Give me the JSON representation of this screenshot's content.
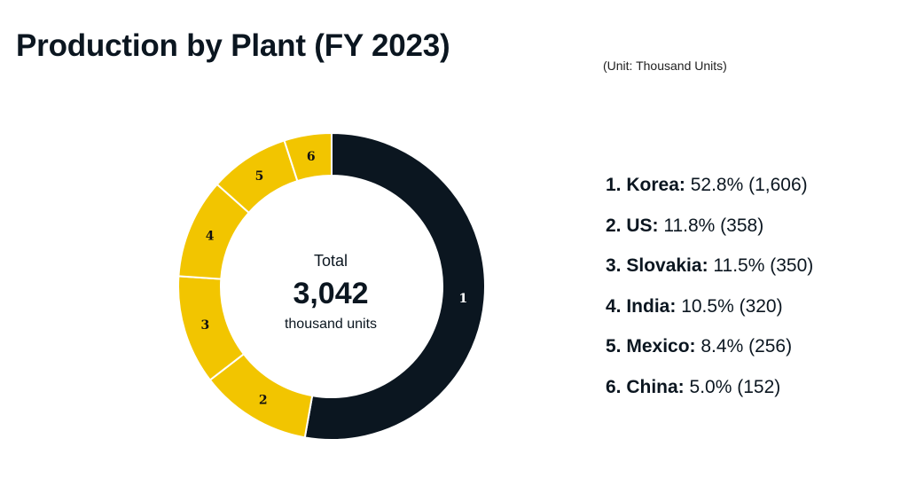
{
  "chart_data": {
    "type": "pie",
    "donut": true,
    "title": "Production by Plant (FY 2023)",
    "unit_note": "(Unit: Thousand Units)",
    "center": {
      "label": "Total",
      "value": "3,042",
      "sublabel": "thousand units"
    },
    "slices": [
      {
        "number": "1",
        "name": "Korea",
        "percent": "52.8%",
        "value": 1606,
        "value_text": "(1,606)",
        "color": "#0b1620",
        "label_color": "#ffffff"
      },
      {
        "number": "2",
        "name": "US",
        "percent": "11.8%",
        "value": 358,
        "value_text": "(358)",
        "color": "#f2c500",
        "label_color": "#111111"
      },
      {
        "number": "3",
        "name": "Slovakia",
        "percent": "11.5%",
        "value": 350,
        "value_text": "(350)",
        "color": "#f2c500",
        "label_color": "#111111"
      },
      {
        "number": "4",
        "name": "India",
        "percent": "10.5%",
        "value": 320,
        "value_text": "(320)",
        "color": "#f2c500",
        "label_color": "#111111"
      },
      {
        "number": "5",
        "name": "Mexico",
        "percent": "8.4%",
        "value": 256,
        "value_text": "(256)",
        "color": "#f2c500",
        "label_color": "#111111"
      },
      {
        "number": "6",
        "name": "China",
        "percent": "5.0%",
        "value": 152,
        "value_text": "(152)",
        "color": "#f2c500",
        "label_color": "#111111"
      }
    ]
  }
}
